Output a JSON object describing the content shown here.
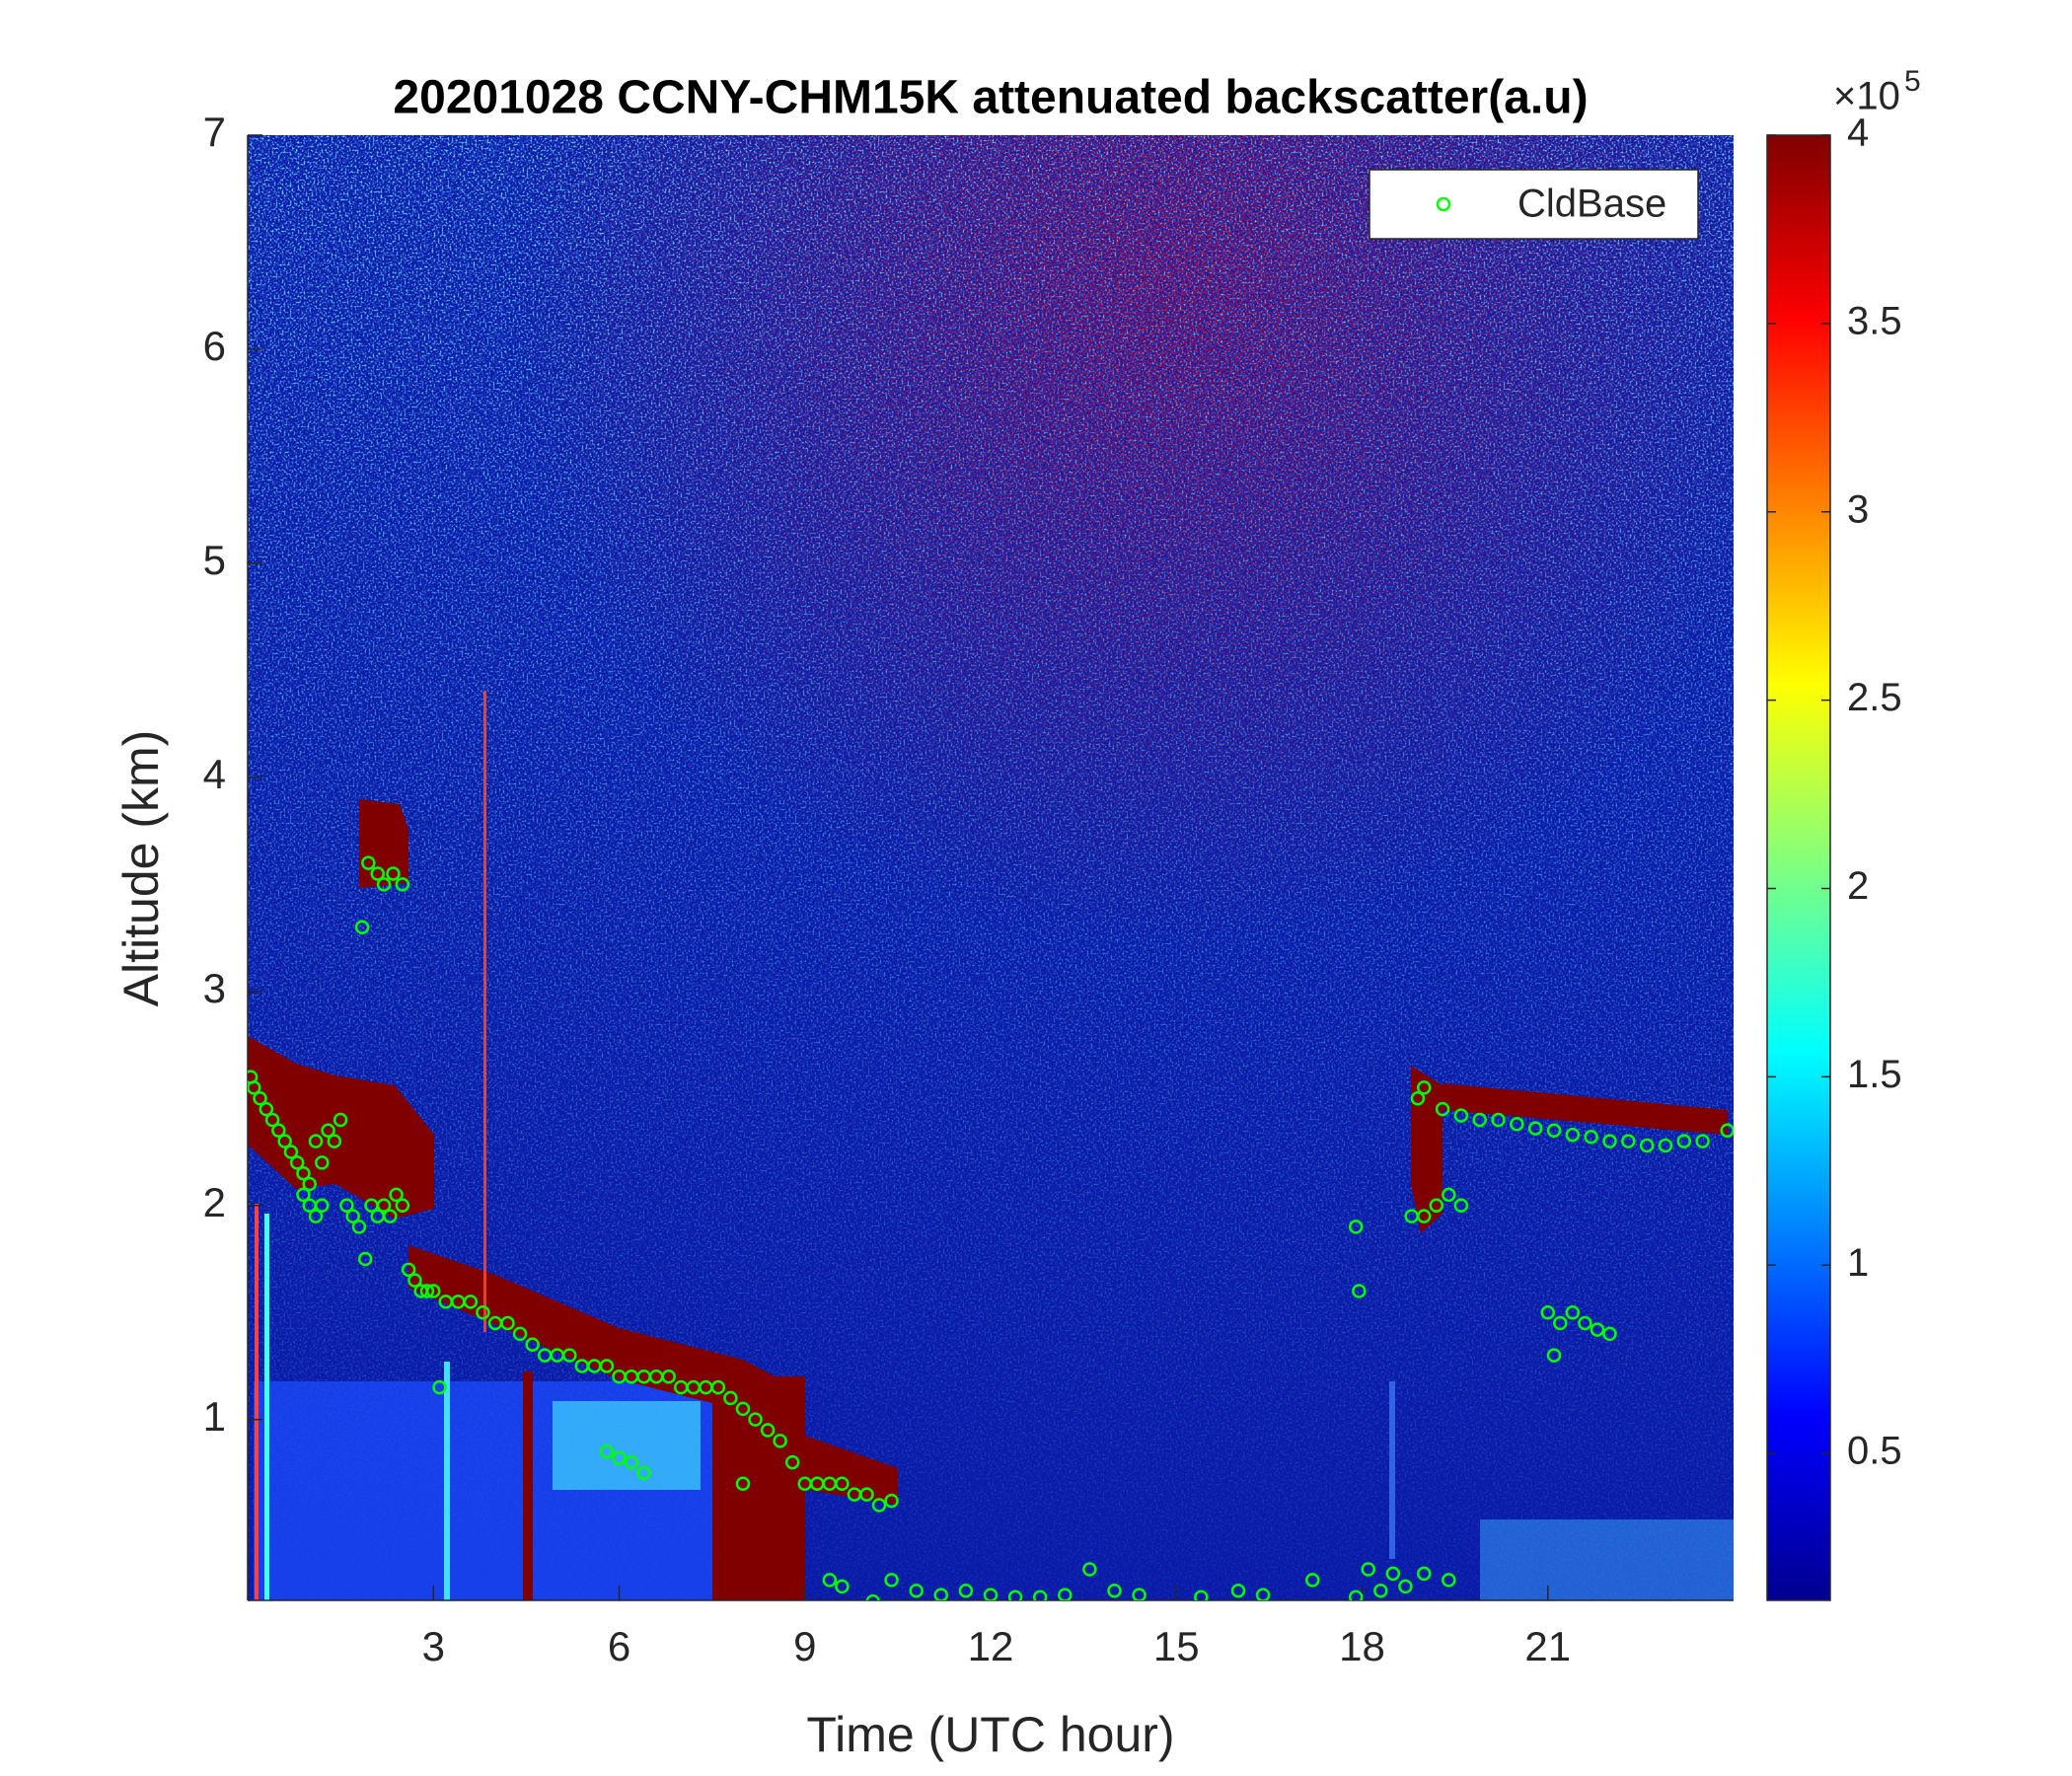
{
  "chart_data": {
    "type": "scatter",
    "title": "20201028 CCNY-CHM15K attenuated backscatter(a.u)",
    "x_label": "Time (UTC hour)",
    "y_label": "Altitude (km)",
    "xlim": [
      0,
      24
    ],
    "ylim": [
      0.155,
      7
    ],
    "xticks": [
      3,
      6,
      9,
      12,
      15,
      18,
      21
    ],
    "yticks": [
      1,
      2,
      3,
      4,
      5,
      6,
      7
    ],
    "colormap": "jet",
    "clim": [
      0.11,
      4
    ],
    "colorbar_ticks": [
      0.5,
      1,
      1.5,
      2,
      2.5,
      3,
      3.5,
      4
    ],
    "colorbar_scale": "×10",
    "colorbar_exponent": "5",
    "legend": "upper right",
    "series": [
      {
        "name": "CldBase",
        "color": "#00ff00",
        "marker": "circle",
        "x": [
          0.05,
          0.1,
          0.2,
          0.3,
          0.4,
          0.5,
          0.6,
          0.7,
          0.8,
          0.9,
          1.0,
          1.1,
          1.2,
          1.3,
          1.4,
          1.5,
          0.9,
          1.0,
          1.1,
          1.2,
          1.6,
          1.7,
          1.8,
          1.9,
          2.0,
          2.1,
          2.2,
          2.3,
          2.4,
          2.5,
          1.85,
          1.95,
          2.1,
          2.2,
          2.35,
          2.5,
          2.6,
          2.7,
          2.8,
          2.9,
          3.0,
          3.2,
          3.4,
          3.6,
          3.8,
          4.0,
          4.2,
          4.4,
          4.6,
          4.8,
          5.0,
          5.2,
          5.4,
          5.6,
          5.8,
          6.0,
          6.2,
          6.4,
          6.6,
          6.8,
          7.0,
          7.2,
          7.4,
          7.6,
          7.8,
          8.0,
          8.2,
          8.4,
          8.6,
          8.8,
          9.0,
          9.2,
          9.4,
          9.6,
          9.8,
          10.0,
          10.2,
          10.4,
          5.8,
          6.0,
          6.2,
          6.4,
          8.0,
          3.1,
          9.4,
          9.6,
          10.1,
          10.4,
          10.8,
          11.2,
          11.6,
          12.0,
          12.4,
          12.8,
          13.2,
          13.6,
          14.0,
          14.4,
          15.4,
          16.0,
          16.4,
          17.2,
          17.9,
          18.1,
          18.3,
          18.5,
          18.7,
          19.0,
          19.4,
          17.9,
          17.95,
          18.8,
          19.0,
          19.2,
          19.4,
          19.6,
          18.9,
          19.0,
          19.3,
          19.6,
          19.9,
          20.2,
          20.5,
          20.8,
          21.1,
          21.4,
          21.7,
          22.0,
          22.3,
          22.6,
          22.9,
          23.2,
          23.5,
          23.9,
          21.0,
          21.2,
          21.4,
          21.6,
          21.8,
          22.0,
          21.1
        ],
        "values": [
          2.6,
          2.55,
          2.5,
          2.45,
          2.4,
          2.35,
          2.3,
          2.25,
          2.2,
          2.15,
          2.1,
          2.3,
          2.2,
          2.35,
          2.3,
          2.4,
          2.05,
          2.0,
          1.95,
          2.0,
          2.0,
          1.95,
          1.9,
          1.75,
          2.0,
          1.95,
          2.0,
          1.95,
          2.05,
          2.0,
          3.3,
          3.6,
          3.55,
          3.5,
          3.55,
          3.5,
          1.7,
          1.65,
          1.6,
          1.6,
          1.6,
          1.55,
          1.55,
          1.55,
          1.5,
          1.45,
          1.45,
          1.4,
          1.35,
          1.3,
          1.3,
          1.3,
          1.25,
          1.25,
          1.25,
          1.2,
          1.2,
          1.2,
          1.2,
          1.2,
          1.15,
          1.15,
          1.15,
          1.15,
          1.1,
          1.05,
          1.0,
          0.95,
          0.9,
          0.8,
          0.7,
          0.7,
          0.7,
          0.7,
          0.65,
          0.65,
          0.6,
          0.62,
          0.85,
          0.82,
          0.8,
          0.75,
          0.7,
          1.15,
          0.25,
          0.22,
          0.15,
          0.25,
          0.2,
          0.18,
          0.2,
          0.18,
          0.17,
          0.17,
          0.18,
          0.3,
          0.2,
          0.18,
          0.17,
          0.2,
          0.18,
          0.25,
          0.17,
          0.3,
          0.2,
          0.28,
          0.22,
          0.28,
          0.25,
          1.9,
          1.6,
          1.95,
          1.95,
          2.0,
          2.05,
          2.0,
          2.5,
          2.55,
          2.45,
          2.42,
          2.4,
          2.4,
          2.38,
          2.36,
          2.35,
          2.33,
          2.32,
          2.3,
          2.3,
          2.28,
          2.28,
          2.3,
          2.3,
          2.35,
          1.5,
          1.45,
          1.5,
          1.45,
          1.42,
          1.4,
          1.3
        ]
      }
    ]
  }
}
